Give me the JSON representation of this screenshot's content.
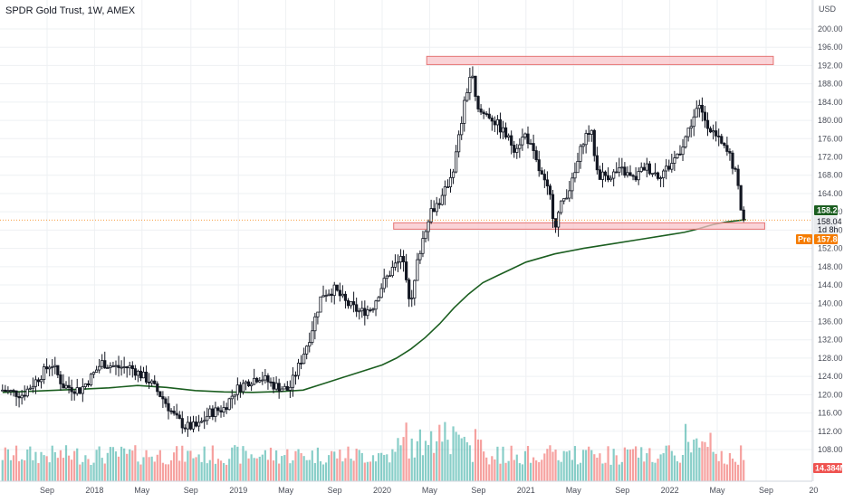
{
  "chart_data": {
    "type": "candlestick",
    "title": "SPDR Gold Trust, 1W, AMEX",
    "currency_label": "USD",
    "y_ticks": [
      108,
      112,
      116,
      120,
      124,
      128,
      132,
      136,
      140,
      144,
      148,
      152,
      156,
      160,
      164,
      168,
      172,
      176,
      180,
      184,
      188,
      192,
      196,
      200
    ],
    "ylim": [
      104,
      202
    ],
    "x_ticks": [
      {
        "label": "Sep",
        "t": 2017.67
      },
      {
        "label": "2018",
        "t": 2018.0
      },
      {
        "label": "May",
        "t": 2018.33
      },
      {
        "label": "Sep",
        "t": 2018.67
      },
      {
        "label": "2019",
        "t": 2019.0
      },
      {
        "label": "May",
        "t": 2019.33
      },
      {
        "label": "Sep",
        "t": 2019.67
      },
      {
        "label": "2020",
        "t": 2020.0
      },
      {
        "label": "May",
        "t": 2020.33
      },
      {
        "label": "Sep",
        "t": 2020.67
      },
      {
        "label": "2021",
        "t": 2021.0
      },
      {
        "label": "May",
        "t": 2021.33
      },
      {
        "label": "Sep",
        "t": 2021.67
      },
      {
        "label": "2022",
        "t": 2022.0
      },
      {
        "label": "May",
        "t": 2022.33
      },
      {
        "label": "Sep",
        "t": 2022.67
      },
      {
        "label": "20",
        "t": 2023.0
      }
    ],
    "xlim": [
      2017.36,
      2023.02
    ],
    "price_key_points": [
      [
        2017.36,
        121
      ],
      [
        2017.5,
        120
      ],
      [
        2017.62,
        124
      ],
      [
        2017.7,
        127
      ],
      [
        2017.78,
        122
      ],
      [
        2017.9,
        121
      ],
      [
        2017.98,
        124
      ],
      [
        2018.05,
        127
      ],
      [
        2018.15,
        126
      ],
      [
        2018.25,
        126
      ],
      [
        2018.38,
        123
      ],
      [
        2018.48,
        119
      ],
      [
        2018.56,
        115
      ],
      [
        2018.63,
        113
      ],
      [
        2018.72,
        113
      ],
      [
        2018.8,
        116
      ],
      [
        2018.9,
        117
      ],
      [
        2018.98,
        121
      ],
      [
        2019.07,
        123
      ],
      [
        2019.15,
        124
      ],
      [
        2019.25,
        122
      ],
      [
        2019.35,
        121
      ],
      [
        2019.43,
        127
      ],
      [
        2019.5,
        133
      ],
      [
        2019.58,
        142
      ],
      [
        2019.67,
        143
      ],
      [
        2019.75,
        140
      ],
      [
        2019.85,
        138
      ],
      [
        2019.93,
        139
      ],
      [
        2020.0,
        144
      ],
      [
        2020.08,
        148
      ],
      [
        2020.15,
        150
      ],
      [
        2020.2,
        139
      ],
      [
        2020.25,
        150
      ],
      [
        2020.33,
        160
      ],
      [
        2020.42,
        163
      ],
      [
        2020.5,
        170
      ],
      [
        2020.58,
        185
      ],
      [
        2020.62,
        191
      ],
      [
        2020.66,
        182
      ],
      [
        2020.75,
        181
      ],
      [
        2020.83,
        178
      ],
      [
        2020.92,
        174
      ],
      [
        2021.0,
        177
      ],
      [
        2021.08,
        170
      ],
      [
        2021.17,
        163
      ],
      [
        2021.2,
        157
      ],
      [
        2021.25,
        162
      ],
      [
        2021.33,
        167
      ],
      [
        2021.4,
        176
      ],
      [
        2021.45,
        178
      ],
      [
        2021.5,
        168
      ],
      [
        2021.58,
        168
      ],
      [
        2021.67,
        169
      ],
      [
        2021.75,
        167
      ],
      [
        2021.83,
        170
      ],
      [
        2021.92,
        168
      ],
      [
        2022.0,
        170
      ],
      [
        2022.08,
        174
      ],
      [
        2022.13,
        178
      ],
      [
        2022.17,
        181
      ],
      [
        2022.2,
        183
      ],
      [
        2022.25,
        180
      ],
      [
        2022.33,
        176
      ],
      [
        2022.42,
        172
      ],
      [
        2022.46,
        168
      ],
      [
        2022.5,
        160
      ],
      [
        2022.53,
        158.21
      ]
    ],
    "moving_average": [
      [
        2017.36,
        120.5
      ],
      [
        2017.6,
        120.8
      ],
      [
        2017.9,
        121.2
      ],
      [
        2018.1,
        121.5
      ],
      [
        2018.3,
        122.0
      ],
      [
        2018.5,
        121.6
      ],
      [
        2018.7,
        120.9
      ],
      [
        2018.9,
        120.6
      ],
      [
        2019.1,
        120.5
      ],
      [
        2019.3,
        120.7
      ],
      [
        2019.45,
        121.0
      ],
      [
        2019.6,
        122.5
      ],
      [
        2019.8,
        124.5
      ],
      [
        2020.0,
        126.5
      ],
      [
        2020.1,
        128.0
      ],
      [
        2020.2,
        130.0
      ],
      [
        2020.3,
        132.5
      ],
      [
        2020.4,
        135.5
      ],
      [
        2020.5,
        139.0
      ],
      [
        2020.6,
        142.0
      ],
      [
        2020.7,
        144.5
      ],
      [
        2020.8,
        146.0
      ],
      [
        2020.9,
        147.5
      ],
      [
        2021.0,
        149.0
      ],
      [
        2021.2,
        150.8
      ],
      [
        2021.4,
        152.0
      ],
      [
        2021.6,
        153.0
      ],
      [
        2021.8,
        154.0
      ],
      [
        2022.0,
        155.0
      ],
      [
        2022.1,
        155.5
      ],
      [
        2022.2,
        156.3
      ],
      [
        2022.3,
        157.2
      ],
      [
        2022.4,
        157.8
      ],
      [
        2022.53,
        158.3
      ]
    ],
    "resistance_zone": {
      "t_start": 2020.31,
      "t_end": 2022.72,
      "y_low": 192.2,
      "y_high": 194.0
    },
    "support_zone": {
      "t_start": 2020.08,
      "t_end": 2022.66,
      "y_low": 156.2,
      "y_high": 157.6
    },
    "last_price": {
      "value": "158.21",
      "color": "#1b5e20"
    },
    "current_price": {
      "value": "158.04",
      "countdown": "1d 8h"
    },
    "premarket": {
      "tag": "Pre",
      "value": "157.80",
      "color": "#f57c00"
    },
    "volume_last": {
      "value": "14.384M",
      "color": "#ef5350"
    },
    "colors": {
      "up": "#26a69a",
      "down": "#ef5350",
      "candle": "#131722",
      "ma": "#1b5e20",
      "zone_fill": "#f8c4c9",
      "zone_stroke": "#e57373"
    }
  }
}
